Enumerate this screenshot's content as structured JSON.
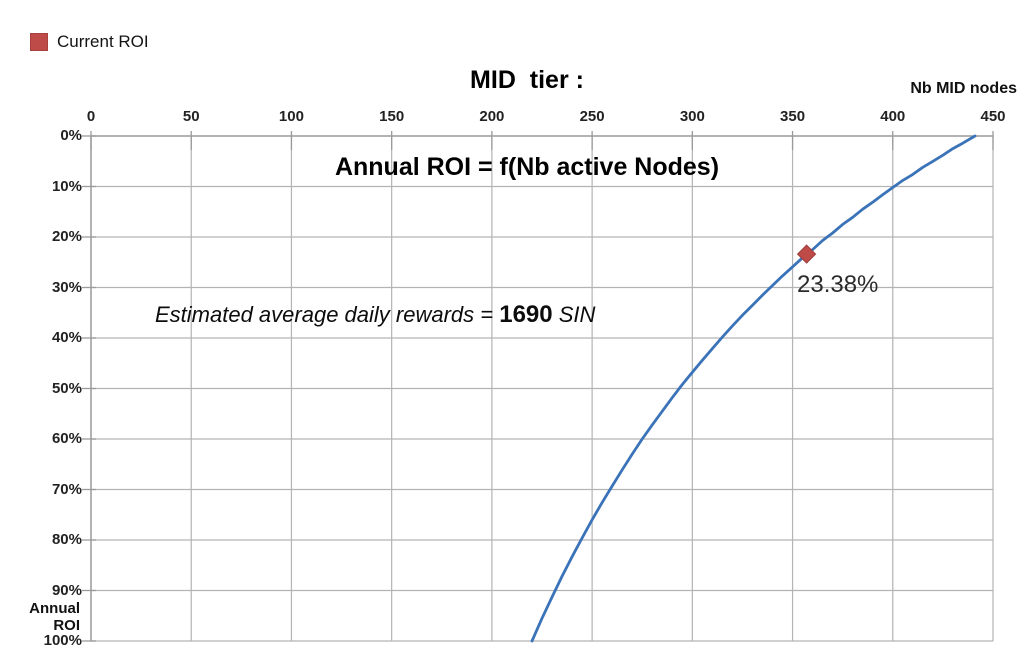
{
  "title": {
    "line1": "MID  tier :",
    "line2": "Annual ROI = f(Nb active Nodes)"
  },
  "legend": {
    "label": "Current ROI",
    "marker_color": "#be4b48"
  },
  "axes": {
    "x_title": "Nb MID nodes",
    "y_title": "Annual ROI"
  },
  "annotation": {
    "prefix": "Estimated average daily rewards = ",
    "value": "1690",
    "suffix": " SIN"
  },
  "chart_data": {
    "type": "line",
    "title": "MID tier : Annual ROI = f(Nb active Nodes)",
    "xlabel": "Nb MID nodes",
    "ylabel": "Annual ROI",
    "x_axis_position": "top",
    "y_axis_inverted": true,
    "grid": true,
    "legend_position": "top-left",
    "xlim": [
      0,
      450
    ],
    "ylim_percent": [
      0,
      100
    ],
    "x_ticks": [
      0,
      50,
      100,
      150,
      200,
      250,
      300,
      350,
      400,
      450
    ],
    "y_ticks_percent": [
      0,
      10,
      20,
      30,
      40,
      50,
      60,
      70,
      80,
      90,
      100
    ],
    "colors": {
      "curve": "#3b73b9",
      "marker": "#be4b48",
      "gridline": "#b3b3b3",
      "axis": "#9a9a9a"
    },
    "series": [
      {
        "name": "Annual ROI vs active nodes",
        "color": "#3b73b9",
        "points": [
          [
            220,
            100.0
          ],
          [
            225,
            95.5
          ],
          [
            230,
            91.3
          ],
          [
            235,
            87.2
          ],
          [
            240,
            83.3
          ],
          [
            245,
            79.6
          ],
          [
            250,
            76.0
          ],
          [
            255,
            72.6
          ],
          [
            260,
            69.3
          ],
          [
            265,
            66.1
          ],
          [
            270,
            63.0
          ],
          [
            275,
            60.0
          ],
          [
            280,
            57.2
          ],
          [
            285,
            54.5
          ],
          [
            290,
            51.8
          ],
          [
            295,
            49.2
          ],
          [
            300,
            46.8
          ],
          [
            305,
            44.4
          ],
          [
            310,
            42.1
          ],
          [
            315,
            39.8
          ],
          [
            320,
            37.6
          ],
          [
            325,
            35.5
          ],
          [
            330,
            33.5
          ],
          [
            335,
            31.5
          ],
          [
            340,
            29.6
          ],
          [
            345,
            27.7
          ],
          [
            350,
            25.9
          ],
          [
            355,
            24.1
          ],
          [
            357,
            23.38
          ],
          [
            360,
            22.5
          ],
          [
            365,
            20.7
          ],
          [
            370,
            19.2
          ],
          [
            375,
            17.5
          ],
          [
            380,
            16.1
          ],
          [
            385,
            14.5
          ],
          [
            390,
            13.1
          ],
          [
            395,
            11.6
          ],
          [
            400,
            10.2
          ],
          [
            405,
            8.8
          ],
          [
            410,
            7.6
          ],
          [
            415,
            6.2
          ],
          [
            420,
            5.0
          ],
          [
            425,
            3.8
          ],
          [
            430,
            2.5
          ],
          [
            435,
            1.4
          ],
          [
            441,
            0.0
          ]
        ]
      }
    ],
    "highlight_point": {
      "series": "Current ROI",
      "x": 357,
      "y_percent": 23.38,
      "label": "23.38%",
      "color": "#be4b48"
    }
  }
}
